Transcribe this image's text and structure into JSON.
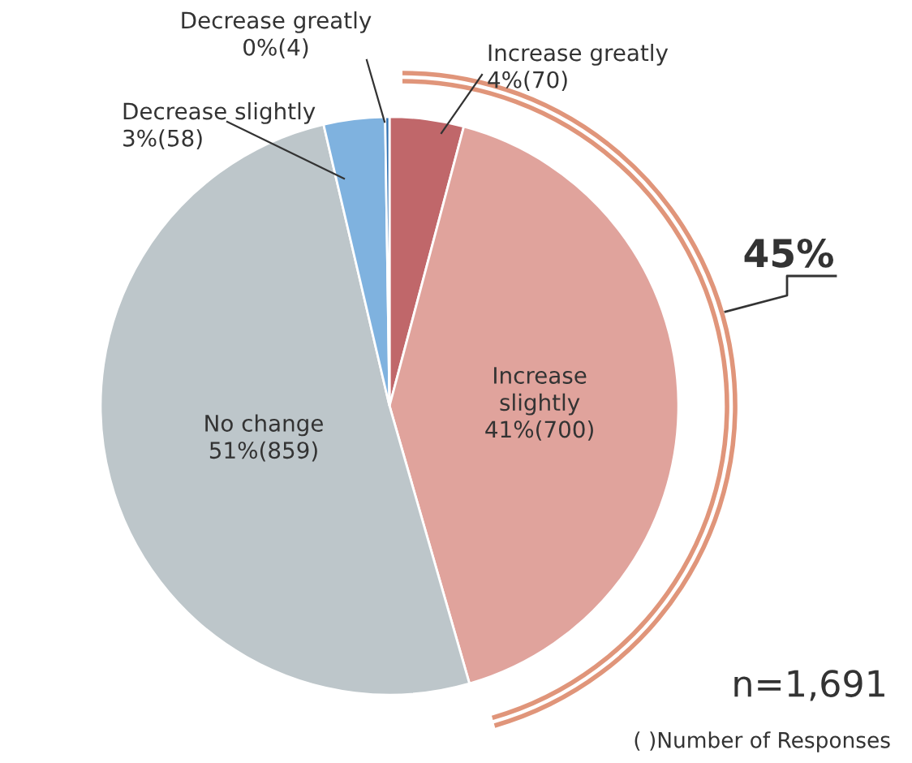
{
  "chart_data": {
    "type": "pie",
    "categories": [
      "Increase greatly",
      "Increase slightly",
      "No change",
      "Decrease slightly",
      "Decrease greatly"
    ],
    "values": [
      70,
      700,
      859,
      58,
      4
    ],
    "value_labels": [
      "4%(70)",
      "41%(700)",
      "51%(859)",
      "3%(58)",
      "0%(4)"
    ],
    "colors": [
      "#c0676a",
      "#e0a39c",
      "#bdc6ca",
      "#7fb2df",
      "#2e6fb0"
    ],
    "annotations": [
      "45%",
      "n=1,691",
      "( )Number of Responses"
    ]
  }
}
